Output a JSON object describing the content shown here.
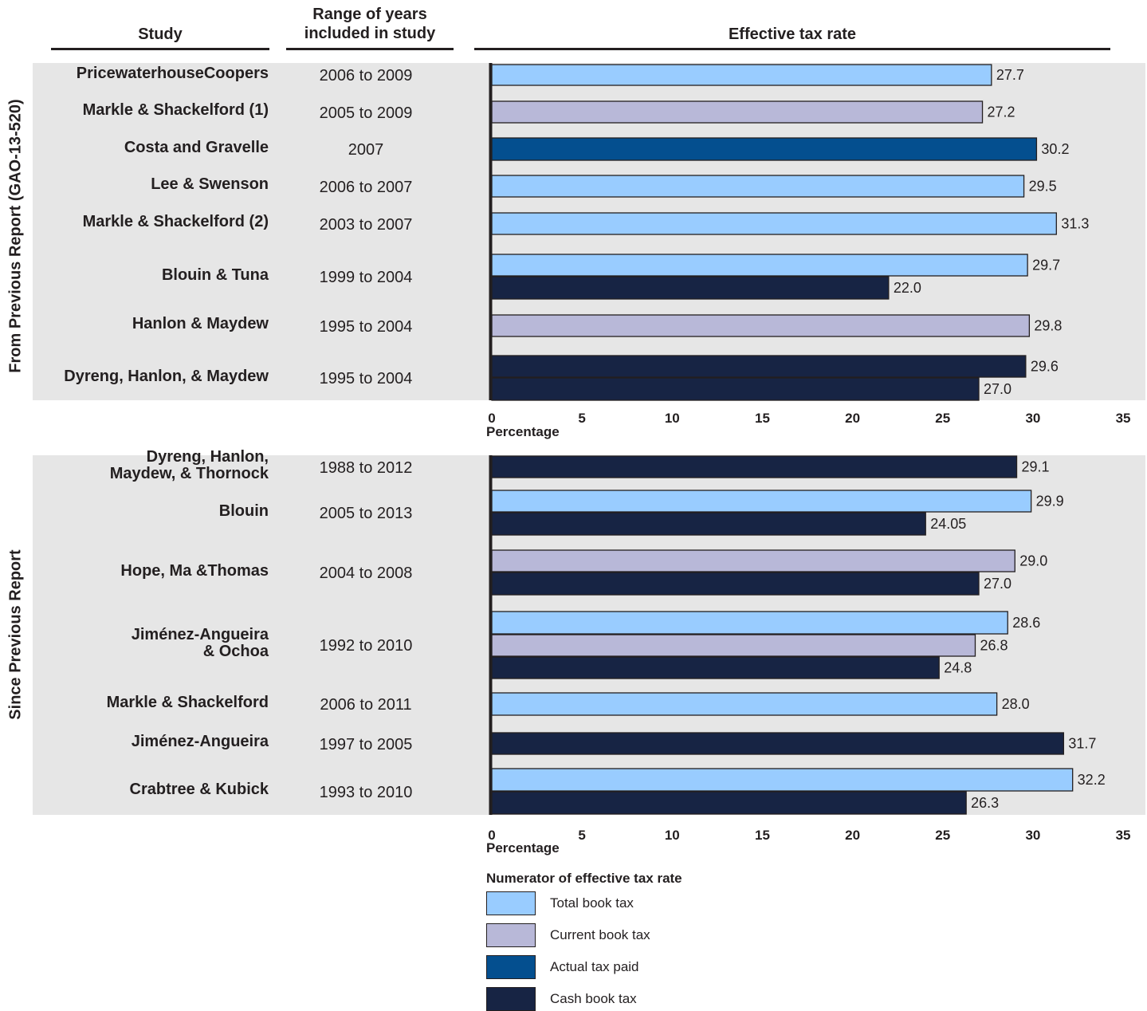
{
  "chart_data": {
    "type": "bar",
    "orientation": "horizontal",
    "columns": {
      "study": "Study",
      "years": "Range of years included in study",
      "rate": "Effective tax rate"
    },
    "xlabel": "Percentage",
    "xlim": [
      0,
      35
    ],
    "xticks": [
      0,
      5,
      10,
      15,
      20,
      25,
      30,
      35
    ],
    "legend_title": "Numerator of effective tax rate",
    "legend_placement": "bottom",
    "series": [
      {
        "key": "total",
        "name": "Total book tax",
        "color": "#99ccff"
      },
      {
        "key": "current",
        "name": "Current book tax",
        "color": "#b8b8d8"
      },
      {
        "key": "actual",
        "name": "Actual tax paid",
        "color": "#044f8f"
      },
      {
        "key": "cash",
        "name": "Cash book tax",
        "color": "#172444"
      }
    ],
    "sections": [
      {
        "label": "From Previous Report (GAO-13-520)",
        "studies": [
          {
            "study": "PricewaterhouseCoopers",
            "years": "2006 to 2009",
            "bars": [
              {
                "series": "total",
                "value": 27.7,
                "label": "27.7"
              }
            ]
          },
          {
            "study": "Markle & Shackelford (1)",
            "years": "2005 to 2009",
            "bars": [
              {
                "series": "current",
                "value": 27.2,
                "label": "27.2"
              }
            ]
          },
          {
            "study": "Costa and Gravelle",
            "years": "2007",
            "bars": [
              {
                "series": "actual",
                "value": 30.2,
                "label": "30.2"
              }
            ]
          },
          {
            "study": "Lee & Swenson",
            "years": "2006 to 2007",
            "bars": [
              {
                "series": "total",
                "value": 29.5,
                "label": "29.5"
              }
            ]
          },
          {
            "study": "Markle & Shackelford (2)",
            "years": "2003 to 2007",
            "bars": [
              {
                "series": "total",
                "value": 31.3,
                "label": "31.3"
              }
            ]
          },
          {
            "study": "Blouin & Tuna",
            "years": "1999 to 2004",
            "bars": [
              {
                "series": "total",
                "value": 29.7,
                "label": "29.7"
              },
              {
                "series": "cash",
                "value": 22.0,
                "label": "22.0"
              }
            ]
          },
          {
            "study": "Hanlon & Maydew",
            "years": "1995 to 2004",
            "bars": [
              {
                "series": "current",
                "value": 29.8,
                "label": "29.8"
              }
            ]
          },
          {
            "study": "Dyreng, Hanlon, & Maydew",
            "years": "1995 to 2004",
            "bars": [
              {
                "series": "cash",
                "value": 29.6,
                "label": "29.6"
              },
              {
                "series": "cash",
                "value": 27.0,
                "label": "27.0"
              }
            ]
          }
        ]
      },
      {
        "label": "Since Previous Report",
        "studies": [
          {
            "study": "Dyreng, Hanlon,\nMaydew, & Thornock",
            "years": "1988 to 2012",
            "bars": [
              {
                "series": "cash",
                "value": 29.1,
                "label": "29.1"
              }
            ]
          },
          {
            "study": "Blouin",
            "years": "2005 to 2013",
            "bars": [
              {
                "series": "total",
                "value": 29.9,
                "label": "29.9"
              },
              {
                "series": "cash",
                "value": 24.05,
                "label": "24.05"
              }
            ]
          },
          {
            "study": "Hope, Ma &Thomas",
            "years": "2004 to 2008",
            "bars": [
              {
                "series": "current",
                "value": 29.0,
                "label": "29.0"
              },
              {
                "series": "cash",
                "value": 27.0,
                "label": "27.0"
              }
            ]
          },
          {
            "study": "Jiménez-Angueira\n& Ochoa",
            "years": "1992 to 2010",
            "bars": [
              {
                "series": "total",
                "value": 28.6,
                "label": "28.6"
              },
              {
                "series": "current",
                "value": 26.8,
                "label": "26.8"
              },
              {
                "series": "cash",
                "value": 24.8,
                "label": "24.8"
              }
            ]
          },
          {
            "study": "Markle & Shackelford",
            "years": "2006 to 2011",
            "bars": [
              {
                "series": "total",
                "value": 28.0,
                "label": "28.0"
              }
            ]
          },
          {
            "study": "Jiménez-Angueira",
            "years": "1997 to 2005",
            "bars": [
              {
                "series": "cash",
                "value": 31.7,
                "label": "31.7"
              }
            ]
          },
          {
            "study": "Crabtree & Kubick",
            "years": "1993 to 2010",
            "bars": [
              {
                "series": "total",
                "value": 32.2,
                "label": "32.2"
              },
              {
                "series": "cash",
                "value": 26.3,
                "label": "26.3"
              }
            ]
          }
        ]
      }
    ]
  }
}
